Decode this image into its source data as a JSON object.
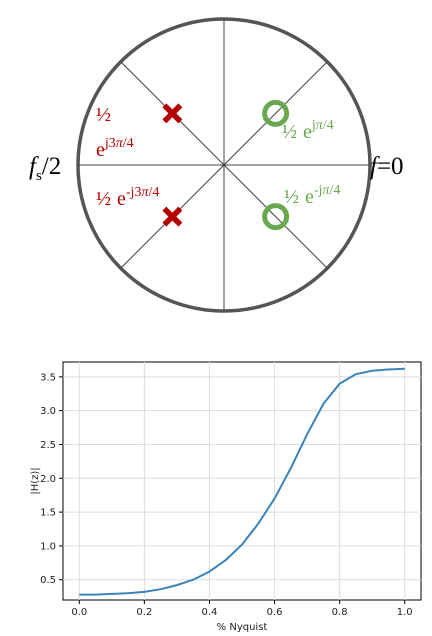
{
  "pole_zero": {
    "labels": {
      "fs_half": {
        "f": "f",
        "sub": "s",
        "rest": "/2"
      },
      "f_zero": {
        "f": "f",
        "rest": "=0"
      },
      "pole_upper": {
        "half": "½",
        "e": "e",
        "exp_a": "j3",
        "exp_pi": "π",
        "exp_b": "/4"
      },
      "pole_lower": {
        "half": "½",
        "e": "e",
        "exp_a": "-j3",
        "exp_pi": "π",
        "exp_b": "/4"
      },
      "zero_upper": {
        "half": "½",
        "e": "e",
        "exp_a": "j",
        "exp_pi": "π",
        "exp_b": "/4"
      },
      "zero_lower": {
        "half": "½",
        "e": "e",
        "exp_a": "-j",
        "exp_pi": "π",
        "exp_b": "/4"
      }
    },
    "poles": [
      {
        "r": 0.5,
        "angle_deg": 135
      },
      {
        "r": 0.5,
        "angle_deg": -135
      }
    ],
    "zeros": [
      {
        "r": 0.5,
        "angle_deg": 45
      },
      {
        "r": 0.5,
        "angle_deg": -45
      }
    ],
    "colors": {
      "pole": "#b40000",
      "zero": "#6aa84f",
      "circle": "#555555",
      "lines": "#444444"
    }
  },
  "chart_data": {
    "type": "line",
    "xlabel": "% Nyquist",
    "ylabel": "|H(z)|",
    "xlim": [
      -0.05,
      1.05
    ],
    "ylim": [
      0.2,
      3.72
    ],
    "grid": true,
    "xticks": [
      "0.0",
      "0.2",
      "0.4",
      "0.6",
      "0.8",
      "1.0"
    ],
    "yticks": [
      "0.5",
      "1.0",
      "1.5",
      "2.0",
      "2.5",
      "3.0",
      "3.5"
    ],
    "color": "#3a84b8",
    "series": [
      {
        "x": [
          0.0,
          0.05,
          0.1,
          0.15,
          0.2,
          0.25,
          0.3,
          0.35,
          0.4,
          0.45,
          0.5,
          0.55,
          0.6,
          0.65,
          0.7,
          0.75,
          0.8,
          0.85,
          0.9,
          0.95,
          1.0
        ],
        "y": [
          0.28,
          0.28,
          0.29,
          0.3,
          0.32,
          0.36,
          0.42,
          0.5,
          0.62,
          0.79,
          1.02,
          1.33,
          1.7,
          2.15,
          2.65,
          3.1,
          3.4,
          3.54,
          3.59,
          3.61,
          3.62
        ]
      }
    ]
  }
}
